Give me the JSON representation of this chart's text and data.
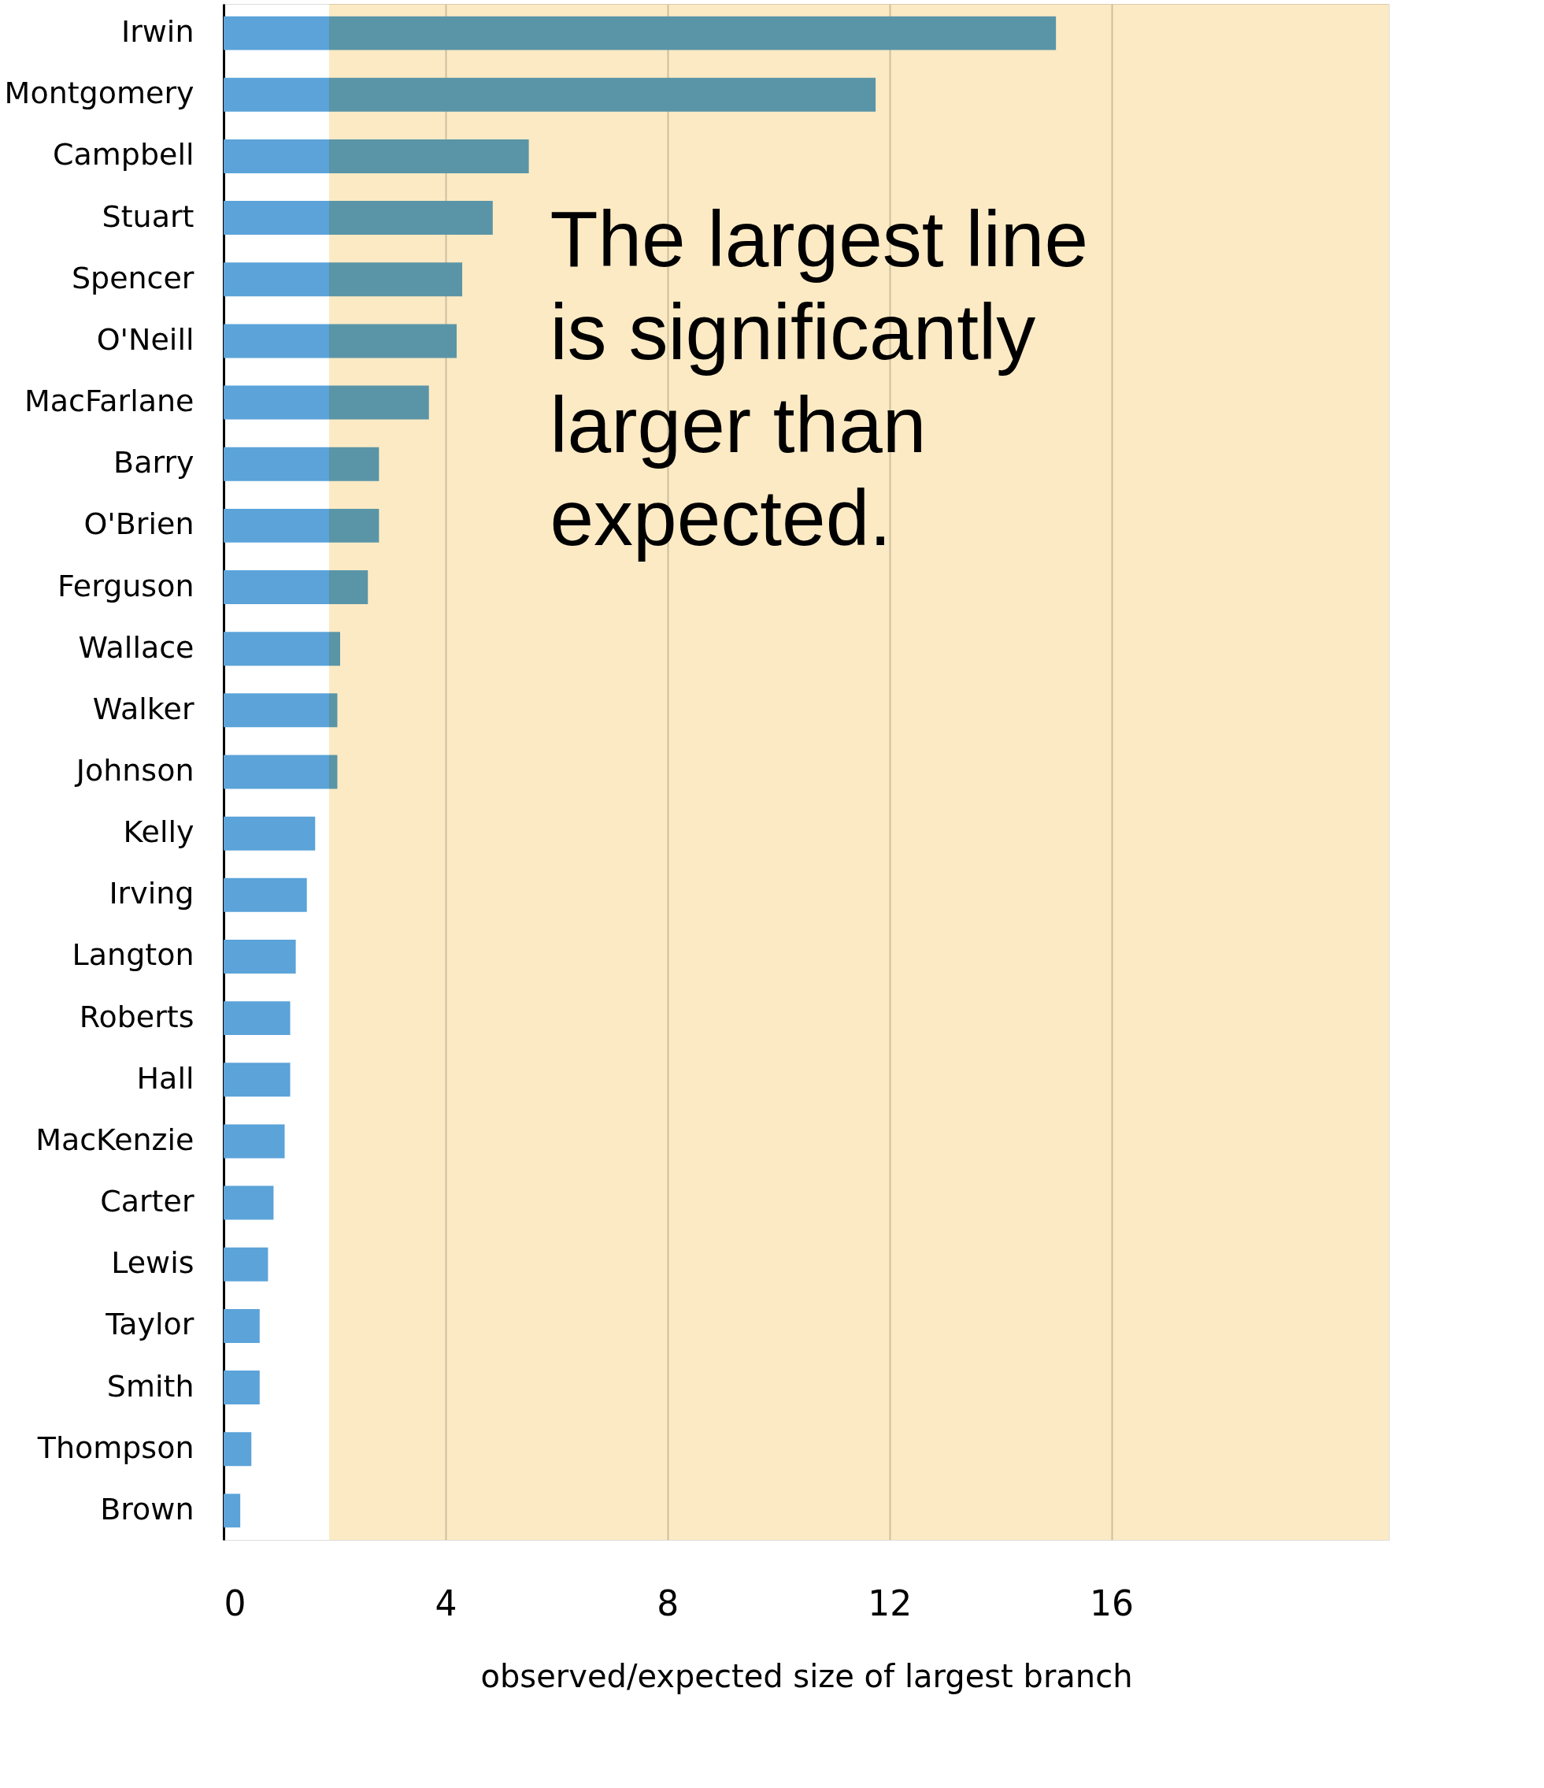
{
  "chart_data": {
    "type": "bar",
    "orientation": "horizontal",
    "categories": [
      "Irwin",
      "Montgomery",
      "Campbell",
      "Stuart",
      "Spencer",
      "O'Neill",
      "MacFarlane",
      "Barry",
      "O'Brien",
      "Ferguson",
      "Wallace",
      "Walker",
      "Johnson",
      "Kelly",
      "Irving",
      "Langton",
      "Roberts",
      "Hall",
      "MacKenzie",
      "Carter",
      "Lewis",
      "Taylor",
      "Smith",
      "Thompson",
      "Brown"
    ],
    "values": [
      15.0,
      11.75,
      5.5,
      4.85,
      4.3,
      4.2,
      3.7,
      2.8,
      2.8,
      2.6,
      2.1,
      2.05,
      2.05,
      1.65,
      1.5,
      1.3,
      1.2,
      1.2,
      1.1,
      0.9,
      0.8,
      0.65,
      0.65,
      0.5,
      0.3
    ],
    "color": "#5ba3d9",
    "xlim": [
      0,
      21
    ],
    "xticks": [
      0,
      4,
      8,
      12,
      16
    ],
    "xlabel": "observed/expected size of largest branch",
    "grid": "x",
    "bands": [
      {
        "axis": "x",
        "from": 1.9,
        "to": 21,
        "color": "#fbe3b0"
      }
    ],
    "annotations": [
      "The largest line is significantly larger than expected."
    ]
  }
}
